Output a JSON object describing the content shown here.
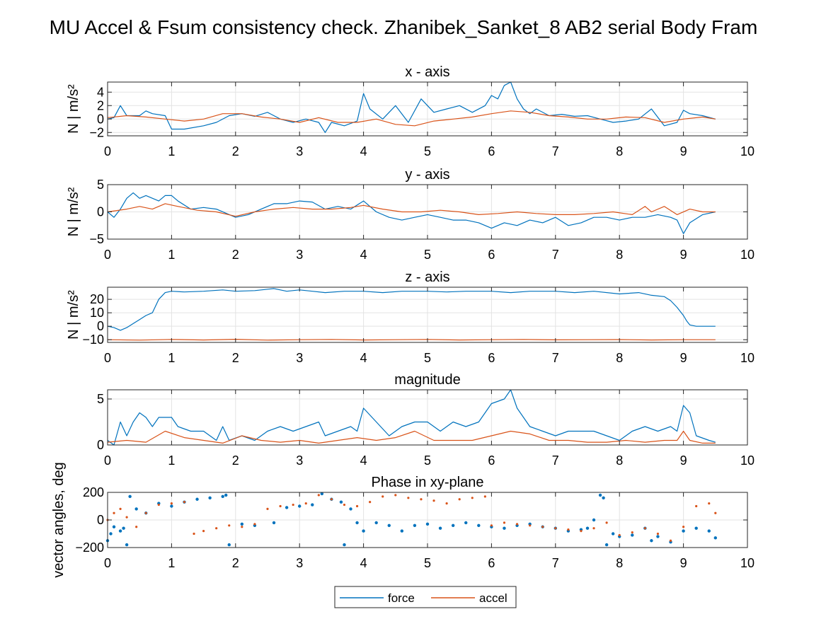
{
  "figure_title": "MU Accel & Fsum consistency check. Zhanibek_Sanket_8    AB2    serial  Body Fram",
  "colors": {
    "force": "#0072BD",
    "accel": "#D95319",
    "grid": "#e3e3e3",
    "axis": "#262626"
  },
  "legend": {
    "placement": "bottom-center",
    "items": [
      {
        "label": "force",
        "color": "#0072BD"
      },
      {
        "label": "accel",
        "color": "#D95319"
      }
    ]
  },
  "chart_data": [
    {
      "type": "line",
      "title": "x - axis",
      "ylabel": "N | m/s²",
      "xlim": [
        0,
        10
      ],
      "ylim": [
        -2.5,
        5.5
      ],
      "xticks": [
        0,
        1,
        2,
        3,
        4,
        5,
        6,
        7,
        8,
        9,
        10
      ],
      "yticks": [
        -2,
        0,
        2,
        4
      ],
      "grid": true,
      "series": [
        {
          "name": "force",
          "x": [
            0,
            0.1,
            0.2,
            0.3,
            0.5,
            0.6,
            0.7,
            0.9,
            1.0,
            1.2,
            1.5,
            1.7,
            1.9,
            2.1,
            2.3,
            2.5,
            2.7,
            2.9,
            3.1,
            3.3,
            3.4,
            3.5,
            3.7,
            3.9,
            4.0,
            4.1,
            4.3,
            4.5,
            4.7,
            4.9,
            5.1,
            5.3,
            5.5,
            5.7,
            5.9,
            6.0,
            6.1,
            6.2,
            6.3,
            6.4,
            6.5,
            6.6,
            6.7,
            6.9,
            7.1,
            7.3,
            7.5,
            7.7,
            7.9,
            8.1,
            8.3,
            8.5,
            8.7,
            8.9,
            9.0,
            9.1,
            9.3,
            9.5
          ],
          "y": [
            0,
            0.2,
            2,
            0.5,
            0.5,
            1.2,
            0.8,
            0.5,
            -1.5,
            -1.5,
            -1,
            -0.5,
            0.5,
            0.8,
            0.4,
            1,
            0,
            -0.5,
            0,
            -0.5,
            -2,
            -0.5,
            -1,
            -0.3,
            3.8,
            1.5,
            0,
            2,
            -0.5,
            3,
            1,
            1.5,
            2,
            1,
            2,
            3.5,
            3,
            5,
            5.5,
            3,
            1.5,
            0.8,
            1.5,
            0.5,
            0.7,
            0.4,
            0.5,
            0,
            -0.5,
            -0.3,
            0,
            1.5,
            -1,
            -0.5,
            1.3,
            0.8,
            0.5,
            0
          ]
        },
        {
          "name": "accel",
          "x": [
            0,
            0.3,
            0.6,
            0.9,
            1.2,
            1.5,
            1.8,
            2.1,
            2.4,
            2.7,
            3.0,
            3.3,
            3.6,
            3.9,
            4.2,
            4.5,
            4.8,
            5.1,
            5.4,
            5.7,
            6.0,
            6.3,
            6.6,
            6.9,
            7.2,
            7.5,
            7.8,
            8.1,
            8.4,
            8.7,
            9.0,
            9.3,
            9.5
          ],
          "y": [
            0.2,
            0.5,
            0.3,
            0,
            -0.3,
            0,
            0.8,
            0.8,
            0.3,
            0,
            -0.5,
            0.2,
            -0.5,
            -0.5,
            0,
            -0.8,
            -1,
            -0.3,
            0,
            0.3,
            0.8,
            1.2,
            1,
            0.5,
            0.3,
            0,
            0,
            0.3,
            0.2,
            -0.5,
            0,
            0.3,
            0
          ]
        }
      ]
    },
    {
      "type": "line",
      "title": "y - axis",
      "ylabel": "N | m/s²",
      "xlim": [
        0,
        10
      ],
      "ylim": [
        -5,
        5
      ],
      "xticks": [
        0,
        1,
        2,
        3,
        4,
        5,
        6,
        7,
        8,
        9,
        10
      ],
      "yticks": [
        -5,
        0,
        5
      ],
      "grid": true,
      "series": [
        {
          "name": "force",
          "x": [
            0,
            0.1,
            0.2,
            0.3,
            0.4,
            0.5,
            0.6,
            0.8,
            0.9,
            1.0,
            1.1,
            1.3,
            1.5,
            1.7,
            2.0,
            2.2,
            2.4,
            2.6,
            2.8,
            3.0,
            3.2,
            3.4,
            3.6,
            3.8,
            4.0,
            4.2,
            4.4,
            4.6,
            4.8,
            5.0,
            5.2,
            5.4,
            5.6,
            5.8,
            6.0,
            6.2,
            6.4,
            6.6,
            6.8,
            7.0,
            7.2,
            7.4,
            7.6,
            7.8,
            8.0,
            8.2,
            8.4,
            8.6,
            8.8,
            8.9,
            9.0,
            9.1,
            9.3,
            9.5
          ],
          "y": [
            0,
            -1,
            0.5,
            2.5,
            3.5,
            2.5,
            3,
            2,
            3,
            3,
            2,
            0.5,
            0.8,
            0.5,
            -1,
            -0.5,
            0.5,
            1.5,
            1.5,
            2,
            1.8,
            0.5,
            1,
            0.5,
            2,
            0,
            -1,
            -1.5,
            -1,
            -0.5,
            -1,
            -1.5,
            -1.5,
            -2,
            -3,
            -2,
            -2.5,
            -1.5,
            -2,
            -1,
            -2.5,
            -2,
            -1,
            -1,
            -1.5,
            -1,
            -1,
            -0.5,
            -1,
            -1.5,
            -4,
            -2,
            -0.5,
            0
          ]
        },
        {
          "name": "accel",
          "x": [
            0,
            0.3,
            0.5,
            0.7,
            0.9,
            1.1,
            1.4,
            1.7,
            2.0,
            2.3,
            2.6,
            2.9,
            3.2,
            3.5,
            3.8,
            4.0,
            4.3,
            4.6,
            4.9,
            5.2,
            5.5,
            5.8,
            6.1,
            6.4,
            6.7,
            7.0,
            7.3,
            7.6,
            7.9,
            8.2,
            8.4,
            8.5,
            8.7,
            8.9,
            9.1,
            9.3,
            9.5
          ],
          "y": [
            0,
            0.5,
            1,
            0.5,
            1.5,
            1,
            0.3,
            0,
            -0.8,
            0,
            0.5,
            0.8,
            0.5,
            0.5,
            0.8,
            1.2,
            0.5,
            0,
            0,
            0.3,
            0,
            -0.5,
            -0.3,
            0,
            -0.3,
            -0.5,
            -0.5,
            -0.3,
            0,
            -0.5,
            1,
            0,
            1,
            -0.5,
            0.5,
            0,
            0
          ]
        }
      ]
    },
    {
      "type": "line",
      "title": "z - axis",
      "ylabel": "N | m/s²",
      "xlim": [
        0,
        10
      ],
      "ylim": [
        -12,
        29
      ],
      "xticks": [
        0,
        1,
        2,
        3,
        4,
        5,
        6,
        7,
        8,
        9,
        10
      ],
      "yticks": [
        -10,
        0,
        10,
        20
      ],
      "grid": true,
      "series": [
        {
          "name": "force",
          "x": [
            0,
            0.1,
            0.2,
            0.3,
            0.4,
            0.5,
            0.6,
            0.7,
            0.8,
            0.9,
            1.0,
            1.2,
            1.5,
            1.8,
            2.0,
            2.3,
            2.6,
            2.8,
            3.0,
            3.2,
            3.4,
            3.7,
            4.0,
            4.3,
            4.6,
            5.0,
            5.3,
            5.6,
            6.0,
            6.3,
            6.6,
            7.0,
            7.3,
            7.6,
            8.0,
            8.3,
            8.5,
            8.7,
            8.8,
            8.9,
            9.0,
            9.05,
            9.1,
            9.2,
            9.5
          ],
          "y": [
            0,
            -1,
            -3,
            -1,
            2,
            5,
            8,
            10,
            20,
            25,
            26,
            25.5,
            26,
            27,
            26,
            26.5,
            28,
            26,
            27,
            26,
            25,
            26,
            26,
            25,
            26,
            26,
            25.5,
            26,
            26,
            25,
            26,
            26,
            25,
            26,
            24,
            25,
            23,
            22,
            19,
            14,
            8,
            4,
            1,
            0,
            0
          ]
        },
        {
          "name": "accel",
          "x": [
            0,
            0.5,
            1.0,
            1.5,
            2.0,
            2.5,
            3.0,
            3.5,
            4.0,
            4.5,
            5.0,
            5.5,
            6.0,
            6.5,
            7.0,
            7.5,
            8.0,
            8.5,
            9.0,
            9.5
          ],
          "y": [
            -10,
            -10.3,
            -9.8,
            -10.2,
            -9.7,
            -10.3,
            -10,
            -9.8,
            -10.2,
            -10,
            -9.8,
            -10.2,
            -10,
            -9.8,
            -10.1,
            -10,
            -9.9,
            -10.2,
            -10,
            -10
          ]
        }
      ]
    },
    {
      "type": "line",
      "title": "magnitude",
      "ylabel": "",
      "xlim": [
        0,
        10
      ],
      "ylim": [
        0,
        6
      ],
      "xticks": [
        0,
        1,
        2,
        3,
        4,
        5,
        6,
        7,
        8,
        9,
        10
      ],
      "yticks": [
        0,
        5
      ],
      "grid": true,
      "series": [
        {
          "name": "force",
          "x": [
            0,
            0.1,
            0.2,
            0.3,
            0.4,
            0.5,
            0.6,
            0.7,
            0.8,
            0.9,
            1.0,
            1.1,
            1.3,
            1.5,
            1.7,
            1.8,
            1.9,
            2.1,
            2.3,
            2.5,
            2.7,
            2.9,
            3.1,
            3.3,
            3.4,
            3.6,
            3.8,
            3.9,
            4.0,
            4.2,
            4.4,
            4.6,
            4.8,
            5.0,
            5.2,
            5.4,
            5.6,
            5.8,
            6.0,
            6.2,
            6.3,
            6.4,
            6.6,
            6.8,
            7.0,
            7.2,
            7.4,
            7.6,
            7.8,
            8.0,
            8.2,
            8.4,
            8.6,
            8.8,
            8.9,
            9.0,
            9.1,
            9.2,
            9.4,
            9.5
          ],
          "y": [
            0.5,
            0,
            2.5,
            1,
            2.5,
            3.5,
            3,
            2,
            3,
            3,
            3,
            2,
            1.5,
            1.5,
            0.5,
            2,
            0.5,
            1,
            0.5,
            1.5,
            2,
            1.5,
            2,
            2.5,
            1,
            1.5,
            2,
            1.5,
            4,
            2.5,
            1,
            2,
            2.5,
            2.5,
            1.5,
            2.5,
            2,
            2.5,
            4.5,
            5,
            6,
            4,
            2,
            1.5,
            1,
            1.5,
            1.5,
            1.5,
            1,
            0.5,
            1.5,
            2,
            1.5,
            2,
            1.5,
            4.3,
            3.5,
            1,
            0.5,
            0.3
          ]
        },
        {
          "name": "accel",
          "x": [
            0,
            0.3,
            0.6,
            0.9,
            1.2,
            1.5,
            1.8,
            2.1,
            2.4,
            2.7,
            3.0,
            3.3,
            3.6,
            3.9,
            4.2,
            4.5,
            4.8,
            5.1,
            5.4,
            5.7,
            6.0,
            6.3,
            6.6,
            6.9,
            7.2,
            7.5,
            7.8,
            8.1,
            8.4,
            8.7,
            8.9,
            9.0,
            9.1,
            9.3,
            9.5
          ],
          "y": [
            0.3,
            0.5,
            0.3,
            1.5,
            0.8,
            0.5,
            0.2,
            1,
            0.5,
            0.3,
            0.5,
            0.2,
            0.5,
            0.8,
            0.5,
            0.8,
            1.5,
            0.5,
            0.5,
            0.5,
            1,
            1.5,
            1.2,
            0.5,
            0.5,
            0.3,
            0.3,
            0.5,
            0.3,
            0.5,
            0.5,
            1.5,
            0.5,
            0.2,
            0.2
          ]
        }
      ]
    },
    {
      "type": "scatter",
      "title": "Phase in xy-plane",
      "ylabel": "vector angles, deg",
      "xlim": [
        0,
        10
      ],
      "ylim": [
        -200,
        200
      ],
      "xticks": [
        0,
        1,
        2,
        3,
        4,
        5,
        6,
        7,
        8,
        9,
        10
      ],
      "yticks": [
        -200,
        0,
        200
      ],
      "grid": true,
      "series": [
        {
          "name": "force",
          "x": [
            0,
            0.05,
            0.1,
            0.2,
            0.25,
            0.3,
            0.35,
            0.45,
            0.6,
            0.8,
            1.0,
            1.2,
            1.4,
            1.6,
            1.8,
            1.85,
            1.9,
            2.1,
            2.3,
            2.6,
            2.8,
            3.0,
            3.2,
            3.35,
            3.5,
            3.65,
            3.7,
            3.8,
            3.9,
            4.0,
            4.2,
            4.4,
            4.6,
            4.8,
            5.0,
            5.2,
            5.4,
            5.6,
            5.8,
            6.0,
            6.2,
            6.4,
            6.6,
            6.8,
            7.0,
            7.2,
            7.4,
            7.5,
            7.6,
            7.7,
            7.75,
            7.8,
            7.9,
            8.0,
            8.2,
            8.4,
            8.5,
            8.6,
            8.8,
            9.0,
            9.2,
            9.4,
            9.5
          ],
          "y": [
            -150,
            -100,
            -50,
            -80,
            -60,
            -180,
            170,
            80,
            50,
            120,
            100,
            130,
            150,
            160,
            170,
            180,
            -180,
            -30,
            -40,
            -20,
            90,
            100,
            110,
            190,
            150,
            130,
            -180,
            80,
            -20,
            -80,
            -20,
            -40,
            -80,
            -40,
            -30,
            -60,
            -40,
            -20,
            -40,
            -50,
            -60,
            -40,
            -30,
            -50,
            -60,
            -80,
            -70,
            -60,
            0,
            180,
            160,
            -180,
            -100,
            -120,
            -110,
            -60,
            -150,
            -120,
            -160,
            -80,
            -60,
            -80,
            -130
          ]
        },
        {
          "name": "accel",
          "x": [
            0,
            0.1,
            0.2,
            0.3,
            0.45,
            0.6,
            0.8,
            1.0,
            1.2,
            1.35,
            1.5,
            1.7,
            1.9,
            2.1,
            2.3,
            2.5,
            2.7,
            2.9,
            3.1,
            3.3,
            3.5,
            3.7,
            3.9,
            4.1,
            4.3,
            4.5,
            4.7,
            4.9,
            5.1,
            5.3,
            5.5,
            5.7,
            5.9,
            6.0,
            6.2,
            6.4,
            6.6,
            6.8,
            7.0,
            7.2,
            7.4,
            7.6,
            7.8,
            8.0,
            8.2,
            8.4,
            8.6,
            8.8,
            9.0,
            9.2,
            9.4,
            9.5
          ],
          "y": [
            0,
            50,
            80,
            20,
            -50,
            50,
            110,
            120,
            130,
            -100,
            -80,
            -60,
            -40,
            -50,
            -30,
            80,
            100,
            110,
            120,
            180,
            150,
            110,
            100,
            130,
            170,
            180,
            160,
            150,
            140,
            120,
            150,
            160,
            170,
            -40,
            -20,
            -30,
            -40,
            -50,
            -60,
            -70,
            -80,
            -60,
            -20,
            -110,
            -90,
            -60,
            -100,
            -150,
            -50,
            100,
            120,
            50
          ]
        }
      ]
    }
  ]
}
